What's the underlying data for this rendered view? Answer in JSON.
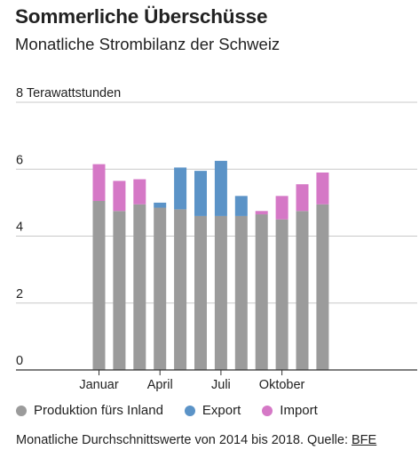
{
  "header": {
    "title": "Sommerliche Überschüsse",
    "subtitle": "Monatliche Strombilanz der Schweiz"
  },
  "colors": {
    "produktion": "#9b9b9b",
    "export": "#5b93c7",
    "import": "#d578c6",
    "grid": "#c8c8c8",
    "axis": "#333333"
  },
  "chart_data": {
    "type": "bar",
    "stacked": true,
    "ylabel": "Terawattstunden",
    "ylim": [
      0,
      8
    ],
    "yticks": [
      0,
      2,
      4,
      6,
      8
    ],
    "grid": true,
    "legend_position": "bottom",
    "categories": [
      "1",
      "2",
      "3",
      "4",
      "5",
      "6",
      "7",
      "8",
      "9",
      "10",
      "11",
      "12"
    ],
    "xtick_labels": [
      {
        "month": 1,
        "label": "Januar"
      },
      {
        "month": 4,
        "label": "April"
      },
      {
        "month": 7,
        "label": "Juli"
      },
      {
        "month": 10,
        "label": "Oktober"
      }
    ],
    "series": [
      {
        "name": "Produktion fürs Inland",
        "color": "#9b9b9b",
        "values": [
          5.05,
          4.75,
          4.95,
          4.85,
          4.8,
          4.6,
          4.6,
          4.6,
          4.65,
          4.5,
          4.75,
          4.95
        ]
      },
      {
        "name": "Export",
        "color": "#5b93c7",
        "values": [
          0,
          0,
          0,
          0.15,
          1.25,
          1.35,
          1.65,
          0.6,
          0,
          0,
          0,
          0
        ]
      },
      {
        "name": "Import",
        "color": "#d578c6",
        "values": [
          1.1,
          0.9,
          0.75,
          0,
          0,
          0,
          0,
          0,
          0.1,
          0.7,
          0.8,
          0.95
        ]
      }
    ]
  },
  "legend": {
    "items": [
      {
        "label": "Produktion fürs Inland",
        "color": "#9b9b9b"
      },
      {
        "label": "Export",
        "color": "#5b93c7"
      },
      {
        "label": "Import",
        "color": "#d578c6"
      }
    ]
  },
  "footer": {
    "note": "Monatliche Durchschnittswerte von 2014 bis 2018. Quelle: ",
    "source_label": "BFE"
  }
}
